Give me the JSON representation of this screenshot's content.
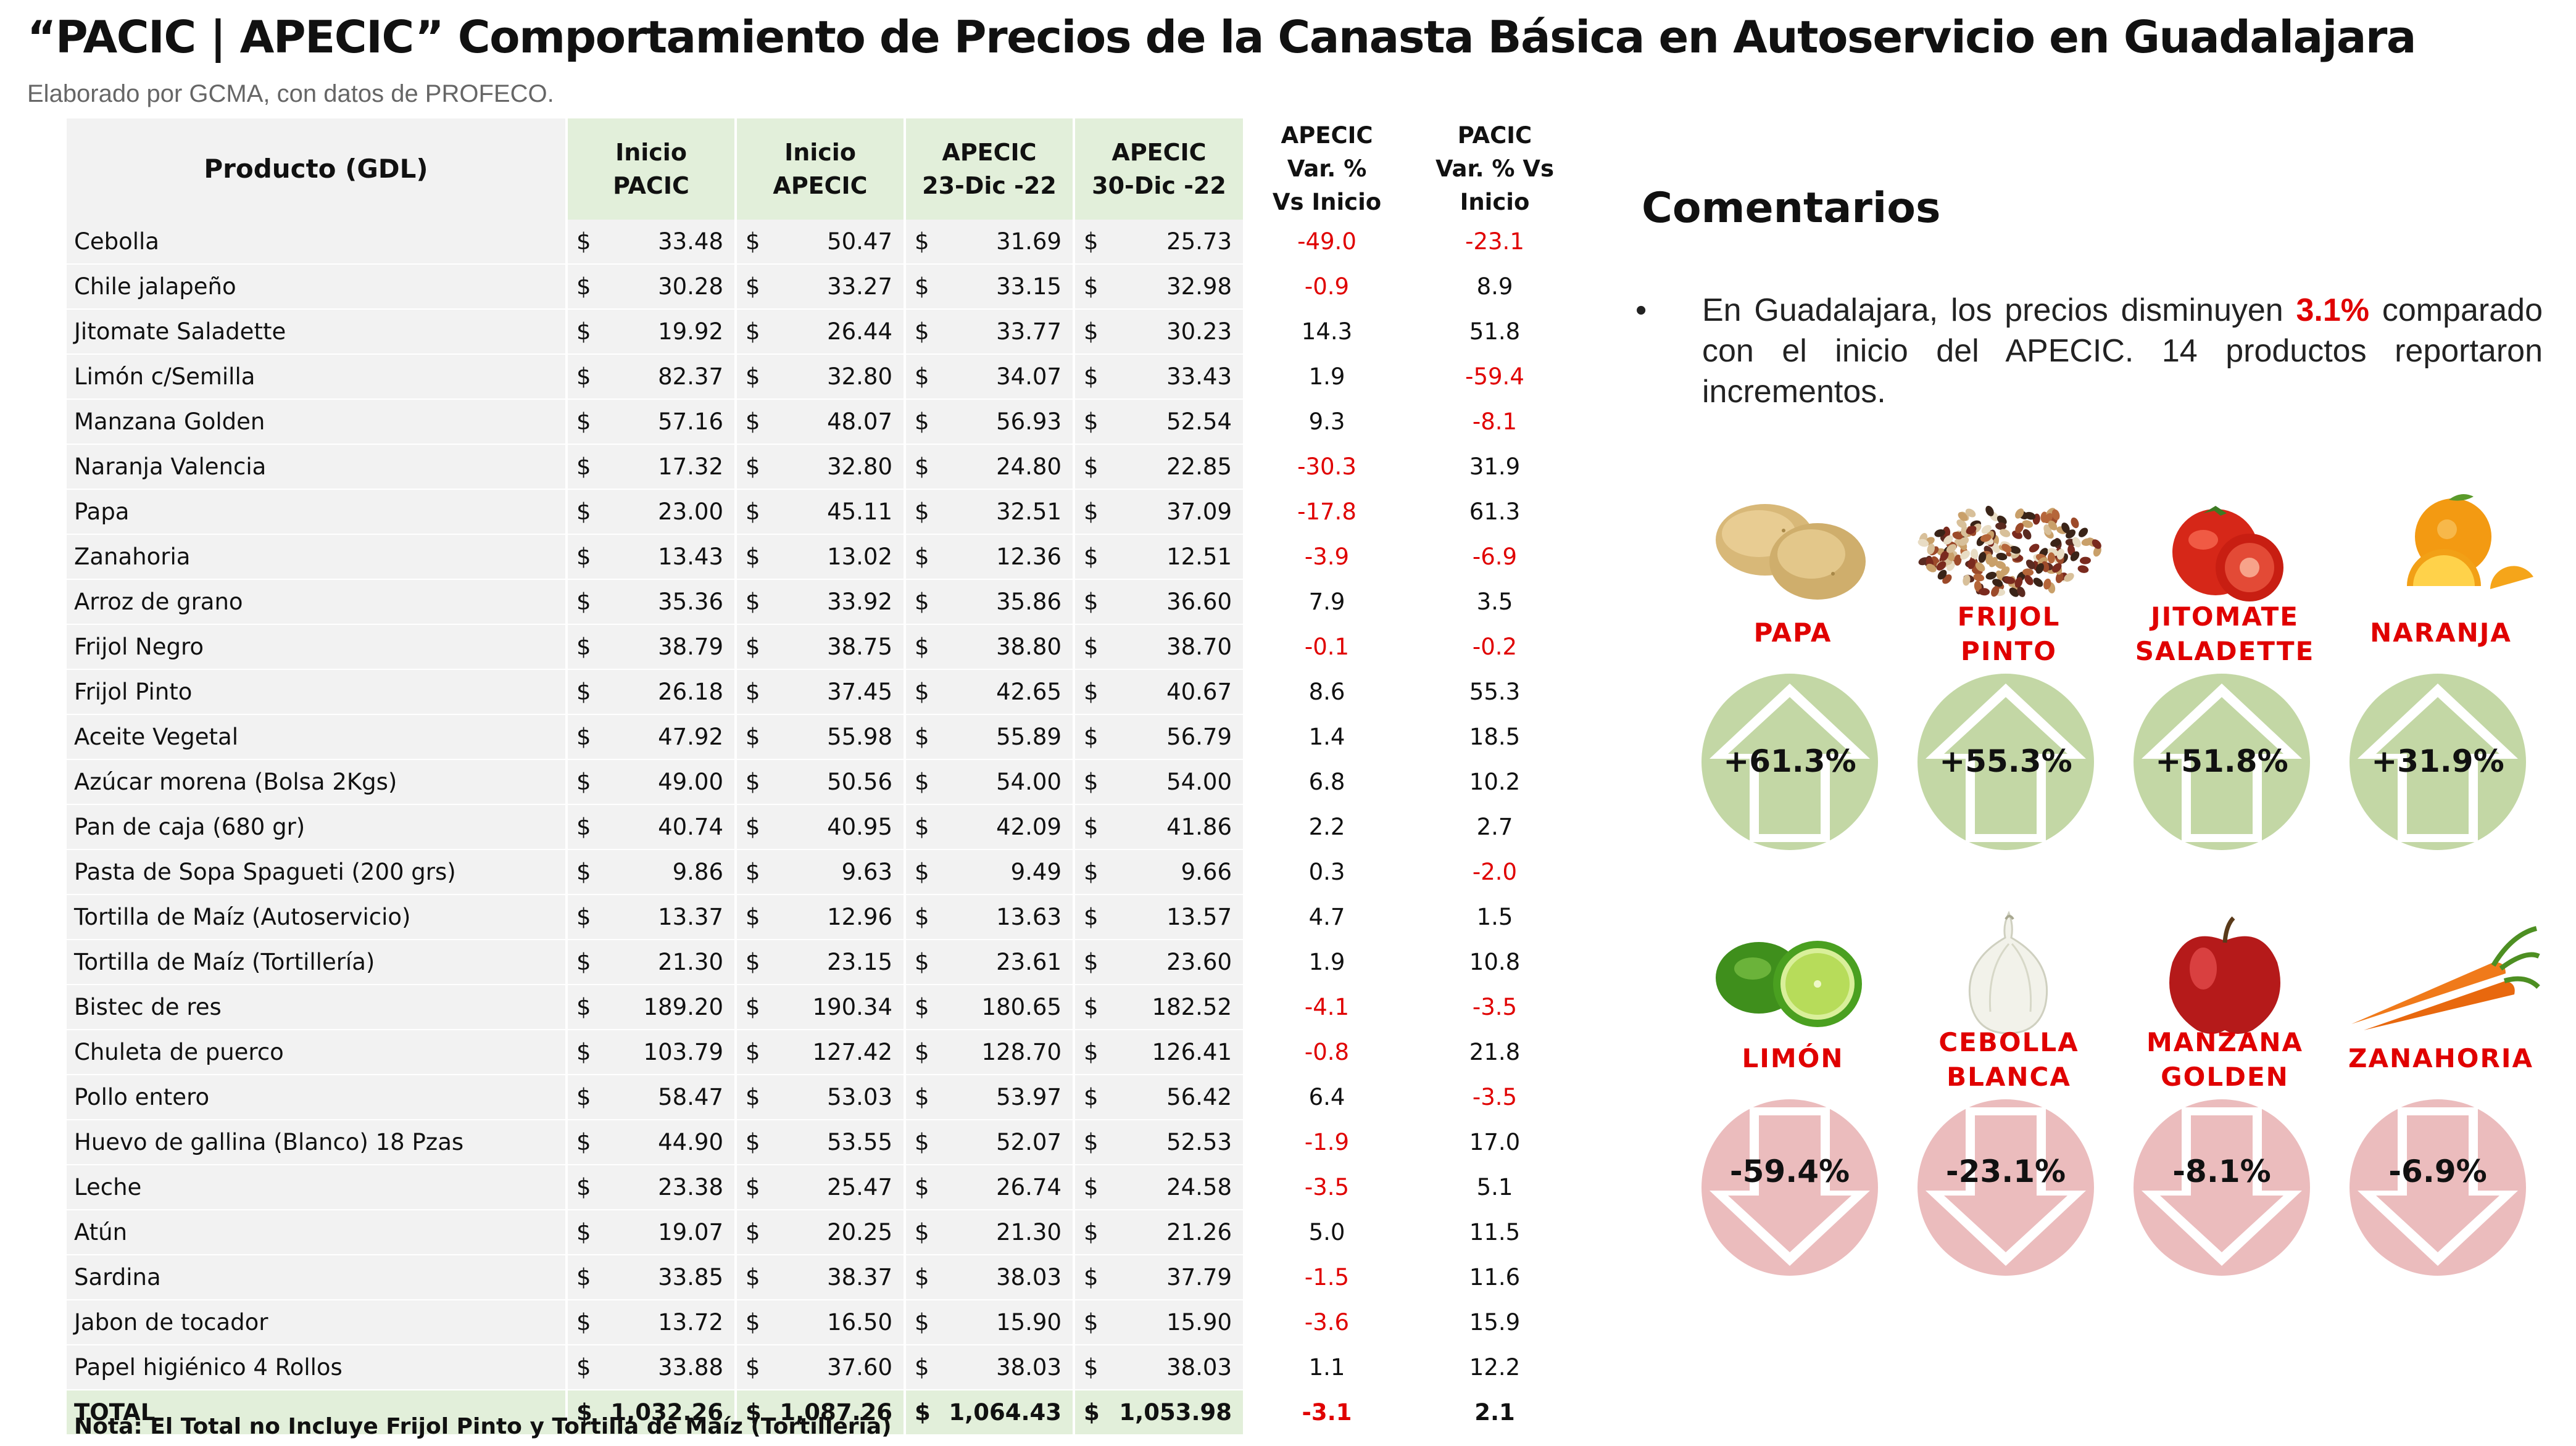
{
  "header": {
    "title": "“PACIC | APECIC” Comportamiento de Precios de la Canasta Básica en Autoservicio en Guadalajara",
    "subtitle": "Elaborado por GCMA, con datos de PROFECO."
  },
  "table": {
    "headers": {
      "product": "Producto (GDL)",
      "inicio_pacic": [
        "Inicio",
        "PACIC"
      ],
      "inicio_apecic": [
        "Inicio",
        "APECIC"
      ],
      "apecic_23": [
        "APECIC",
        "23-Dic -22"
      ],
      "apecic_30": [
        "APECIC",
        "30-Dic -22"
      ],
      "var_apecic": [
        "APECIC",
        "Var. %",
        "Vs  Inicio"
      ],
      "var_pacic": [
        "PACIC",
        "Var. % Vs",
        "Inicio"
      ]
    },
    "currency": "$",
    "rows": [
      [
        "Cebolla",
        "33.48",
        "50.47",
        "31.69",
        "25.73",
        "-49.0",
        "-23.1"
      ],
      [
        "Chile jalapeño",
        "30.28",
        "33.27",
        "33.15",
        "32.98",
        "-0.9",
        "8.9"
      ],
      [
        "Jitomate Saladette",
        "19.92",
        "26.44",
        "33.77",
        "30.23",
        "14.3",
        "51.8"
      ],
      [
        "Limón c/Semilla",
        "82.37",
        "32.80",
        "34.07",
        "33.43",
        "1.9",
        "-59.4"
      ],
      [
        "Manzana Golden",
        "57.16",
        "48.07",
        "56.93",
        "52.54",
        "9.3",
        "-8.1"
      ],
      [
        "Naranja Valencia",
        "17.32",
        "32.80",
        "24.80",
        "22.85",
        "-30.3",
        "31.9"
      ],
      [
        "Papa",
        "23.00",
        "45.11",
        "32.51",
        "37.09",
        "-17.8",
        "61.3"
      ],
      [
        "Zanahoria",
        "13.43",
        "13.02",
        "12.36",
        "12.51",
        "-3.9",
        "-6.9"
      ],
      [
        "Arroz de grano",
        "35.36",
        "33.92",
        "35.86",
        "36.60",
        "7.9",
        "3.5"
      ],
      [
        "Frijol Negro",
        "38.79",
        "38.75",
        "38.80",
        "38.70",
        "-0.1",
        "-0.2"
      ],
      [
        "Frijol Pinto",
        "26.18",
        "37.45",
        "42.65",
        "40.67",
        "8.6",
        "55.3"
      ],
      [
        "Aceite Vegetal",
        "47.92",
        "55.98",
        "55.89",
        "56.79",
        "1.4",
        "18.5"
      ],
      [
        "Azúcar morena (Bolsa 2Kgs)",
        "49.00",
        "50.56",
        "54.00",
        "54.00",
        "6.8",
        "10.2"
      ],
      [
        "Pan de caja (680 gr)",
        "40.74",
        "40.95",
        "42.09",
        "41.86",
        "2.2",
        "2.7"
      ],
      [
        "Pasta de Sopa Spagueti (200 grs)",
        "9.86",
        "9.63",
        "9.49",
        "9.66",
        "0.3",
        "-2.0"
      ],
      [
        "Tortilla de Maíz (Autoservicio)",
        "13.37",
        "12.96",
        "13.63",
        "13.57",
        "4.7",
        "1.5"
      ],
      [
        "Tortilla de Maíz (Tortillería)",
        "21.30",
        "23.15",
        "23.61",
        "23.60",
        "1.9",
        "10.8"
      ],
      [
        "Bistec de res",
        "189.20",
        "190.34",
        "180.65",
        "182.52",
        "-4.1",
        "-3.5"
      ],
      [
        "Chuleta de puerco",
        "103.79",
        "127.42",
        "128.70",
        "126.41",
        "-0.8",
        "21.8"
      ],
      [
        "Pollo entero",
        "58.47",
        "53.03",
        "53.97",
        "56.42",
        "6.4",
        "-3.5"
      ],
      [
        "Huevo de gallina (Blanco) 18 Pzas",
        "44.90",
        "53.55",
        "52.07",
        "52.53",
        "-1.9",
        "17.0"
      ],
      [
        "Leche",
        "23.38",
        "25.47",
        "26.74",
        "24.58",
        "-3.5",
        "5.1"
      ],
      [
        "Atún",
        "19.07",
        "20.25",
        "21.30",
        "21.26",
        "5.0",
        "11.5"
      ],
      [
        "Sardina",
        "33.85",
        "38.37",
        "38.03",
        "37.79",
        "-1.5",
        "11.6"
      ],
      [
        "Jabon de tocador",
        "13.72",
        "16.50",
        "15.90",
        "15.90",
        "-3.6",
        "15.9"
      ],
      [
        "Papel higiénico 4 Rollos",
        "33.88",
        "37.60",
        "38.03",
        "38.03",
        "1.1",
        "12.2"
      ]
    ],
    "total": [
      "TOTAL",
      "1,032.26",
      "1,087.26",
      "1,064.43",
      "1,053.98",
      "-3.1",
      "2.1"
    ],
    "footnote": "Nota: El Total no Incluye Frijol Pinto y Tortilla de Maíz (Tortilleria)"
  },
  "comments": {
    "title": "Comentarios",
    "bullet": "•",
    "text_before": "En Guadalajara, los precios disminuyen ",
    "highlight": "3.1%",
    "text_after": " comparado con el inicio del APECIC. 14 productos reportaron incrementos."
  },
  "colors": {
    "up_circle": "#c3d7a5",
    "down_circle": "#ebbcbd",
    "negative_text": "#e00000",
    "header_green": "#e2efda"
  },
  "increases": [
    {
      "name": [
        "PAPA"
      ],
      "pct": "+61.3%",
      "icon": "potato-icon"
    },
    {
      "name": [
        "FRIJOL",
        "PINTO"
      ],
      "pct": "+55.3%",
      "icon": "beans-icon"
    },
    {
      "name": [
        "JITOMATE",
        "SALADETTE"
      ],
      "pct": "+51.8%",
      "icon": "tomato-icon"
    },
    {
      "name": [
        "NARANJA"
      ],
      "pct": "+31.9%",
      "icon": "orange-icon"
    }
  ],
  "decreases": [
    {
      "name": [
        "LIMÓN"
      ],
      "pct": "-59.4%",
      "icon": "lime-icon"
    },
    {
      "name": [
        "CEBOLLA",
        "BLANCA"
      ],
      "pct": "-23.1%",
      "icon": "onion-icon"
    },
    {
      "name": [
        "MANZANA",
        "GOLDEN"
      ],
      "pct": "-8.1%",
      "icon": "apple-icon"
    },
    {
      "name": [
        "ZANAHORIA"
      ],
      "pct": "-6.9%",
      "icon": "carrot-icon"
    }
  ]
}
